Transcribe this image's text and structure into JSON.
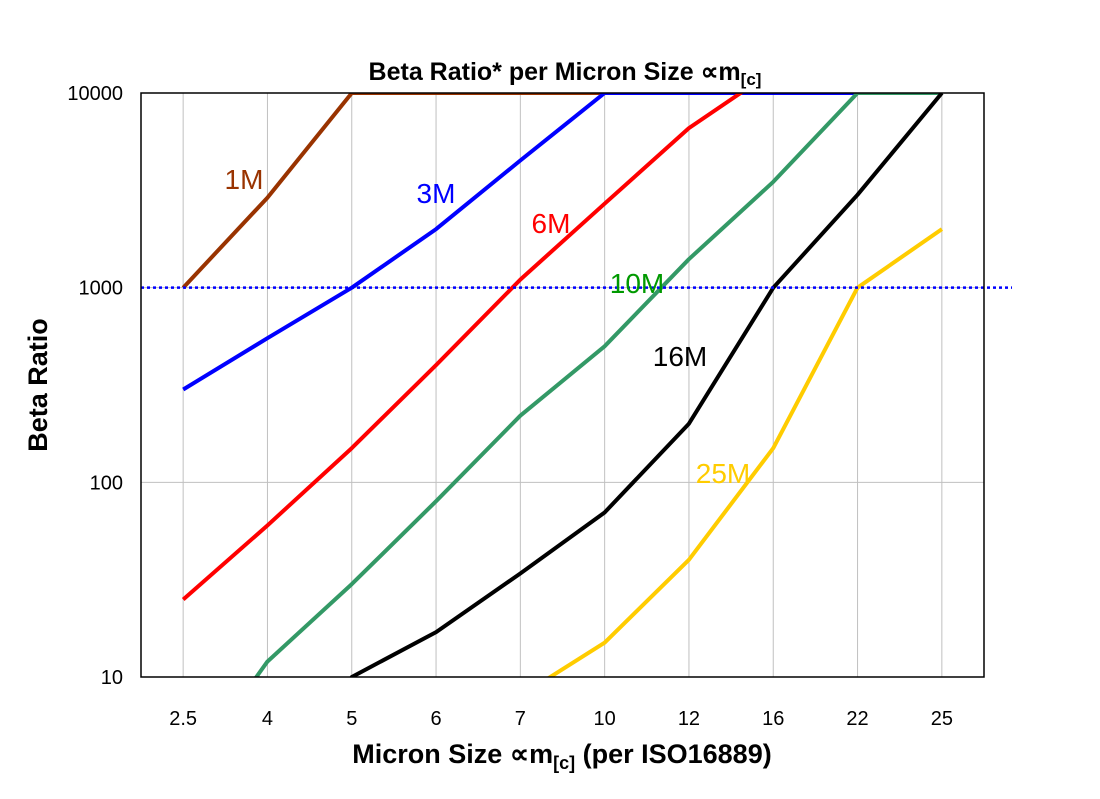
{
  "chart_data": {
    "type": "line",
    "title": "Beta Ratio* per Micron Size ∝m",
    "title_subscript": "[c]",
    "xlabel": "Micron Size ∝m",
    "xlabel_subscript": "[c]",
    "xlabel_suffix": " (per ISO16889)",
    "ylabel": "Beta Ratio",
    "y_scale": "log",
    "ylim": [
      10,
      10000
    ],
    "y_ticks": [
      "10",
      "100",
      "1000",
      "10000"
    ],
    "y_tick_values": [
      10,
      100,
      1000,
      10000
    ],
    "categories": [
      "2.5",
      "4",
      "5",
      "6",
      "7",
      "10",
      "12",
      "16",
      "22",
      "25"
    ],
    "grid": true,
    "reference_line": {
      "y": 1000,
      "color": "#0000ff",
      "style": "dotted"
    },
    "series": [
      {
        "name": "1M",
        "color": "#993300",
        "values": [
          1000,
          2900,
          10000,
          10000,
          10000,
          10000,
          null,
          null,
          null,
          null
        ]
      },
      {
        "name": "3M",
        "color": "#0000ff",
        "values": [
          300,
          550,
          1000,
          2000,
          4500,
          10000,
          10000,
          10000,
          10000,
          10000
        ]
      },
      {
        "name": "6M",
        "color": "#ff0000",
        "values": [
          25,
          60,
          150,
          400,
          1100,
          2700,
          6600,
          13000,
          null,
          null
        ]
      },
      {
        "name": "10M",
        "color": "#339966",
        "label_color": "#009900",
        "values": [
          3,
          12,
          30,
          80,
          220,
          500,
          1400,
          3500,
          10000,
          10000
        ]
      },
      {
        "name": "16M",
        "color": "#000000",
        "values": [
          null,
          2,
          10,
          17,
          34,
          70,
          200,
          1000,
          3000,
          10000
        ]
      },
      {
        "name": "25M",
        "color": "#ffcc00",
        "values": [
          null,
          null,
          null,
          null,
          8,
          15,
          40,
          150,
          1000,
          2000
        ]
      }
    ]
  }
}
